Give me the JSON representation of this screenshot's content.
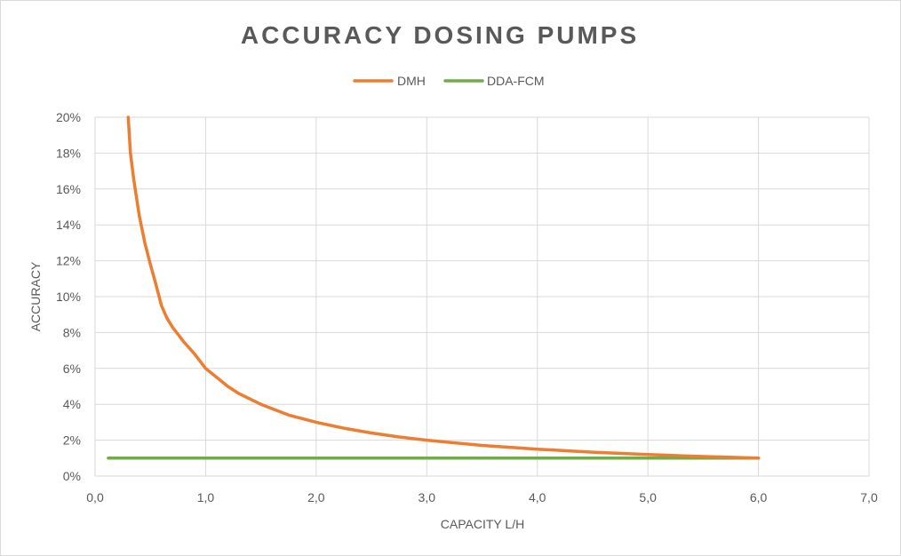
{
  "chart_data": {
    "type": "line",
    "title": "ACCURACY  DOSING  PUMPS",
    "xlabel": "CAPACITY L/H",
    "ylabel": "ACCURACY",
    "xlim": [
      0,
      7
    ],
    "ylim": [
      0,
      0.2
    ],
    "x_ticks": [
      "0,0",
      "1,0",
      "2,0",
      "3,0",
      "4,0",
      "5,0",
      "6,0",
      "7,0"
    ],
    "y_ticks": [
      "0%",
      "2%",
      "4%",
      "6%",
      "8%",
      "10%",
      "12%",
      "14%",
      "16%",
      "18%",
      "20%"
    ],
    "grid": true,
    "legend_position": "top-center",
    "series": [
      {
        "name": "DMH",
        "color": "#ED7D31",
        "x": [
          0.3,
          0.32,
          0.35,
          0.4,
          0.45,
          0.5,
          0.55,
          0.6,
          0.65,
          0.7,
          0.8,
          0.9,
          1.0,
          1.1,
          1.2,
          1.3,
          1.5,
          1.75,
          2.0,
          2.25,
          2.5,
          2.75,
          3.0,
          3.5,
          4.0,
          4.5,
          5.0,
          5.5,
          6.0
        ],
        "y": [
          0.2,
          0.18,
          0.165,
          0.145,
          0.13,
          0.118,
          0.107,
          0.095,
          0.088,
          0.083,
          0.075,
          0.068,
          0.06,
          0.055,
          0.05,
          0.046,
          0.04,
          0.034,
          0.03,
          0.0267,
          0.024,
          0.0218,
          0.02,
          0.0171,
          0.015,
          0.0133,
          0.012,
          0.0109,
          0.01
        ]
      },
      {
        "name": "DDA-FCM",
        "color": "#70AD47",
        "x": [
          0.12,
          6.0
        ],
        "y": [
          0.01,
          0.01
        ]
      }
    ]
  }
}
